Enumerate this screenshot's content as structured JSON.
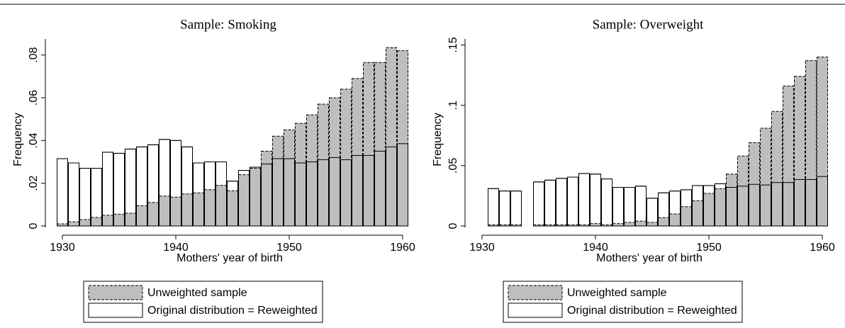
{
  "chart_data": [
    {
      "type": "bar",
      "title": "Sample: Smoking",
      "xlabel": "Mothers' year of birth",
      "ylabel": "Frequency",
      "x": [
        1930,
        1931,
        1932,
        1933,
        1934,
        1935,
        1936,
        1937,
        1938,
        1939,
        1940,
        1941,
        1942,
        1943,
        1944,
        1945,
        1946,
        1947,
        1948,
        1949,
        1950,
        1951,
        1952,
        1953,
        1954,
        1955,
        1956,
        1957,
        1958,
        1959,
        1960
      ],
      "series": [
        {
          "name": "Unweighted sample",
          "color": "#bebebe",
          "values": [
            0.001,
            0.002,
            0.003,
            0.004,
            0.005,
            0.0055,
            0.006,
            0.0095,
            0.011,
            0.014,
            0.0135,
            0.015,
            0.0155,
            0.017,
            0.019,
            0.0165,
            0.024,
            0.027,
            0.035,
            0.042,
            0.045,
            0.048,
            0.052,
            0.057,
            0.06,
            0.064,
            0.069,
            0.0765,
            0.0765,
            0.0835,
            0.082
          ]
        },
        {
          "name": "Original distribution = Reweighted",
          "color": "#ffffff",
          "values": [
            0.0315,
            0.0295,
            0.027,
            0.027,
            0.0345,
            0.034,
            0.036,
            0.037,
            0.038,
            0.0405,
            0.04,
            0.037,
            0.0295,
            0.03,
            0.03,
            0.021,
            0.026,
            0.0275,
            0.029,
            0.0315,
            0.0315,
            0.0295,
            0.03,
            0.031,
            0.032,
            0.031,
            0.033,
            0.033,
            0.035,
            0.037,
            0.0385
          ]
        }
      ],
      "xlim": [
        1929,
        1961
      ],
      "ylim": [
        0,
        0.0875
      ],
      "xticks": [
        1930,
        1940,
        1950,
        1960
      ],
      "yticks": [
        0,
        {
          "value": 0.02,
          "label": ".02"
        },
        {
          "value": 0.04,
          "label": ".04"
        },
        {
          "value": 0.06,
          "label": ".06"
        },
        {
          "value": 0.08,
          "label": ".08"
        }
      ],
      "legend": "bottom"
    },
    {
      "type": "bar",
      "title": "Sample: Overweight",
      "xlabel": "Mothers' year of birth",
      "ylabel": "Frequency",
      "x": [
        1931,
        1932,
        1933,
        1934,
        1935,
        1936,
        1937,
        1938,
        1939,
        1940,
        1941,
        1942,
        1943,
        1944,
        1945,
        1946,
        1947,
        1948,
        1949,
        1950,
        1951,
        1952,
        1953,
        1954,
        1955,
        1956,
        1957,
        1958,
        1959,
        1960
      ],
      "series": [
        {
          "name": "Unweighted sample",
          "color": "#bebebe",
          "values": [
            0.001,
            0.001,
            0.001,
            null,
            0.001,
            0.001,
            0.001,
            0.001,
            0.001,
            0.002,
            0.001,
            0.002,
            0.003,
            0.004,
            0.003,
            0.007,
            0.01,
            0.016,
            0.021,
            0.027,
            0.031,
            0.043,
            0.058,
            0.069,
            0.081,
            0.095,
            0.116,
            0.124,
            0.137,
            0.14
          ]
        },
        {
          "name": "Original distribution = Reweighted",
          "color": "#ffffff",
          "values": [
            0.031,
            0.029,
            0.029,
            null,
            0.0365,
            0.038,
            0.0395,
            0.0405,
            0.0435,
            0.043,
            0.039,
            0.032,
            0.032,
            0.033,
            0.023,
            0.0275,
            0.029,
            0.03,
            0.0335,
            0.0335,
            0.035,
            0.032,
            0.033,
            0.0345,
            0.034,
            0.036,
            0.036,
            0.0385,
            0.0385,
            0.041
          ]
        }
      ],
      "xlim": [
        1929,
        1961
      ],
      "ylim": [
        0,
        0.155
      ],
      "xticks": [
        1930,
        1940,
        1950,
        1960
      ],
      "yticks": [
        0,
        {
          "value": 0.05,
          "label": ".05"
        },
        {
          "value": 0.1,
          "label": ".1"
        },
        {
          "value": 0.15,
          "label": ".15"
        }
      ],
      "legend": "bottom"
    }
  ]
}
